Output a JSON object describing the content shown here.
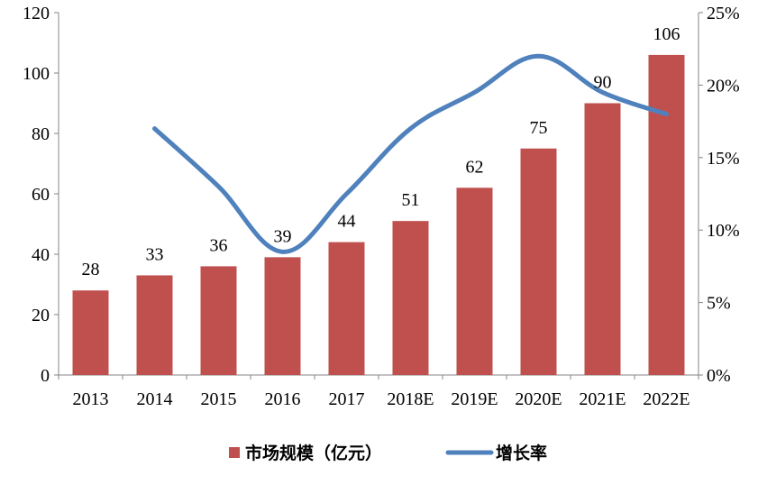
{
  "chart_data": {
    "type": "bar",
    "categories": [
      "2013",
      "2014",
      "2015",
      "2016",
      "2017",
      "2018E",
      "2019E",
      "2020E",
      "2021E",
      "2022E"
    ],
    "series": [
      {
        "name": "市场规模（亿元）",
        "type": "bar",
        "axis": "left",
        "color": "#C0504D",
        "values": [
          28,
          33,
          36,
          39,
          44,
          51,
          62,
          75,
          90,
          106
        ],
        "data_labels": [
          "28",
          "33",
          "36",
          "39",
          "44",
          "51",
          "62",
          "75",
          "90",
          "106"
        ]
      },
      {
        "name": "增长率",
        "type": "line",
        "axis": "right",
        "color": "#4F81BD",
        "values": [
          null,
          0.17,
          0.13,
          0.085,
          0.125,
          0.17,
          0.195,
          0.22,
          0.195,
          0.18
        ]
      }
    ],
    "y_left": {
      "min": 0,
      "max": 120,
      "step": 20,
      "tick_labels": [
        "0",
        "20",
        "40",
        "60",
        "80",
        "100",
        "120"
      ]
    },
    "y_right": {
      "min": 0,
      "max": 0.25,
      "step": 0.05,
      "tick_labels": [
        "0%",
        "5%",
        "10%",
        "15%",
        "20%",
        "25%"
      ]
    },
    "legend": {
      "placement": "bottom",
      "items": [
        {
          "label": "市场规模（亿元）",
          "kind": "bar",
          "color": "#C0504D"
        },
        {
          "label": "增长率",
          "kind": "line",
          "color": "#4F81BD"
        }
      ]
    },
    "grid": false,
    "title": "",
    "xlabel": "",
    "ylabel": ""
  }
}
